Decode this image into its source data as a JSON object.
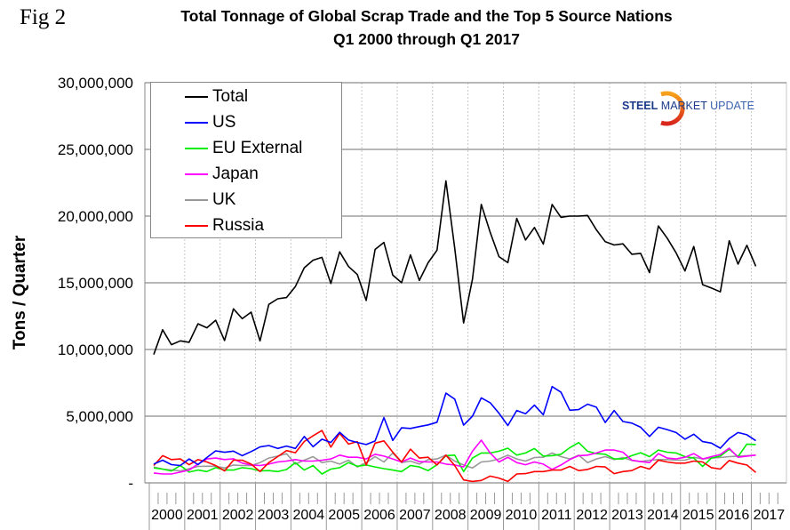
{
  "figure_label": "Fig 2",
  "logo_text": {
    "steel": "STEEL",
    "market": "MARKET",
    "update": "UPDATE"
  },
  "chart_data": {
    "type": "line",
    "title": "Total Tonnage of Global Scrap Trade and the Top 5 Source Nations",
    "subtitle": "Q1 2000 through Q1 2017",
    "xlabel": "",
    "ylabel": "Tons / Quarter",
    "x_frequency": "quarterly",
    "x_range": [
      "Q1 2000",
      "Q1 2017"
    ],
    "x_tick_labels": [
      "2000",
      "2001",
      "2002",
      "2003",
      "2004",
      "2005",
      "2006",
      "2007",
      "2008",
      "2009",
      "2010",
      "2011",
      "2012",
      "2013",
      "2014",
      "2015",
      "2016",
      "2017"
    ],
    "y_tick_labels": [
      "-",
      "5,000,000",
      "10,000,000",
      "15,000,000",
      "20,000,000",
      "25,000,000",
      "30,000,000"
    ],
    "ylim": [
      0,
      30000000
    ],
    "grid": {
      "horizontal": true,
      "vertical": "dotted"
    },
    "legend_placement": "top-left",
    "series": [
      {
        "name": "Total",
        "color": "#000000",
        "values": [
          9620000.0,
          11480000.0,
          10360000.0,
          10650000.0,
          10540000.0,
          11930000.0,
          11630000.0,
          12190000.0,
          10670000.0,
          13050000.0,
          12310000.0,
          12800000.0,
          10650000.0,
          13380000.0,
          13800000.0,
          13890000.0,
          14720000.0,
          16130000.0,
          16690000.0,
          16910000.0,
          14950000.0,
          17320000.0,
          16220000.0,
          15620000.0,
          13670000.0,
          17500000.0,
          18030000.0,
          15570000.0,
          15010000.0,
          17090000.0,
          15170000.0,
          16510000.0,
          17450000.0,
          22640000.0,
          17600000.0,
          11990000.0,
          15280000.0,
          20870000.0,
          18790000.0,
          16960000.0,
          16510000.0,
          19830000.0,
          18210000.0,
          19150000.0,
          17900000.0,
          20870000.0,
          19910000.0,
          20000000.0,
          20000000.0,
          20050000.0,
          18970000.0,
          18080000.0,
          17830000.0,
          17920000.0,
          17140000.0,
          17210000.0,
          15770000.0,
          19260000.0,
          18350000.0,
          17250000.0,
          15890000.0,
          17720000.0,
          14860000.0,
          14610000.0,
          14320000.0,
          18150000.0,
          16400000.0,
          17810000.0,
          16240000.0
        ]
      },
      {
        "name": "US",
        "color": "#0000ff",
        "values": [
          1410000.0,
          1700000.0,
          1370000.0,
          1300000.0,
          1790000.0,
          1370000.0,
          1900000.0,
          2400000.0,
          2290000.0,
          2380000.0,
          2040000.0,
          2350000.0,
          2690000.0,
          2800000.0,
          2580000.0,
          2760000.0,
          2580000.0,
          3480000.0,
          2710000.0,
          3270000.0,
          3030000.0,
          3790000.0,
          3210000.0,
          3030000.0,
          2870000.0,
          3140000.0,
          4890000.0,
          3180000.0,
          4130000.0,
          4080000.0,
          4220000.0,
          4350000.0,
          4550000.0,
          6730000.0,
          6280000.0,
          4330000.0,
          5000000.0,
          6370000.0,
          6010000.0,
          5220000.0,
          4300000.0,
          5430000.0,
          5180000.0,
          5830000.0,
          5110000.0,
          7220000.0,
          6790000.0,
          5450000.0,
          5490000.0,
          5900000.0,
          5670000.0,
          4530000.0,
          5430000.0,
          4600000.0,
          4480000.0,
          4170000.0,
          3480000.0,
          4170000.0,
          3990000.0,
          3770000.0,
          3270000.0,
          3650000.0,
          3090000.0,
          2980000.0,
          2600000.0,
          3320000.0,
          3770000.0,
          3610000.0,
          3160000.0
        ]
      },
      {
        "name": "EU External",
        "color": "#00ee00",
        "values": [
          1120000.0,
          1030000.0,
          890000.0,
          1300000.0,
          810000.0,
          960000.0,
          850000.0,
          1140000.0,
          960000.0,
          960000.0,
          1140000.0,
          1070000.0,
          890000.0,
          920000.0,
          850000.0,
          1000000.0,
          1520000.0,
          960000.0,
          1300000.0,
          670000.0,
          1030000.0,
          1140000.0,
          1520000.0,
          1250000.0,
          1340000.0,
          1190000.0,
          1070000.0,
          960000.0,
          850000.0,
          1300000.0,
          1190000.0,
          920000.0,
          1360000.0,
          2040000.0,
          2080000.0,
          850000.0,
          1860000.0,
          2240000.0,
          2240000.0,
          2370000.0,
          2600000.0,
          2080000.0,
          2240000.0,
          2570000.0,
          2010000.0,
          2040000.0,
          2150000.0,
          2640000.0,
          3020000.0,
          2370000.0,
          2190000.0,
          2150000.0,
          1790000.0,
          1790000.0,
          2040000.0,
          2260000.0,
          1970000.0,
          2460000.0,
          2300000.0,
          2240000.0,
          1970000.0,
          1860000.0,
          1230000.0,
          1860000.0,
          2010000.0,
          2530000.0,
          1970000.0,
          2910000.0,
          2870000.0
        ]
      },
      {
        "name": "Japan",
        "color": "#ff00ff",
        "values": [
          740000.0,
          670000.0,
          670000.0,
          810000.0,
          960000.0,
          1410000.0,
          1790000.0,
          1860000.0,
          1750000.0,
          1810000.0,
          1480000.0,
          1340000.0,
          1300000.0,
          1410000.0,
          1570000.0,
          1630000.0,
          1750000.0,
          1630000.0,
          1630000.0,
          1700000.0,
          1790000.0,
          2080000.0,
          1920000.0,
          1920000.0,
          1790000.0,
          2150000.0,
          2010000.0,
          1790000.0,
          1570000.0,
          1860000.0,
          1590000.0,
          1570000.0,
          1570000.0,
          1410000.0,
          1340000.0,
          1190000.0,
          2370000.0,
          3200000.0,
          2240000.0,
          1570000.0,
          1920000.0,
          1520000.0,
          1360000.0,
          1570000.0,
          1410000.0,
          1010000.0,
          1340000.0,
          1750000.0,
          2040000.0,
          2080000.0,
          2240000.0,
          2460000.0,
          2460000.0,
          2300000.0,
          1700000.0,
          1590000.0,
          1520000.0,
          2190000.0,
          1860000.0,
          1790000.0,
          1920000.0,
          2190000.0,
          1790000.0,
          1970000.0,
          2130000.0,
          2600000.0,
          1920000.0,
          2010000.0,
          2080000.0
        ]
      },
      {
        "name": "UK",
        "color": "#999999",
        "values": [
          1190000.0,
          1030000.0,
          960000.0,
          890000.0,
          1070000.0,
          1230000.0,
          1250000.0,
          1250000.0,
          1120000.0,
          1340000.0,
          1300000.0,
          1300000.0,
          1520000.0,
          1860000.0,
          2010000.0,
          2190000.0,
          1410000.0,
          1700000.0,
          1970000.0,
          1520000.0,
          1630000.0,
          1410000.0,
          1700000.0,
          1190000.0,
          1520000.0,
          1970000.0,
          1570000.0,
          2240000.0,
          1520000.0,
          1630000.0,
          1410000.0,
          1750000.0,
          1790000.0,
          2080000.0,
          1630000.0,
          1340000.0,
          1120000.0,
          1570000.0,
          1630000.0,
          1790000.0,
          2080000.0,
          1790000.0,
          1630000.0,
          1900000.0,
          1920000.0,
          2240000.0,
          1970000.0,
          1790000.0,
          2080000.0,
          1520000.0,
          1790000.0,
          1970000.0,
          1750000.0,
          1900000.0,
          1680000.0,
          1590000.0,
          1700000.0,
          1750000.0,
          1750000.0,
          1700000.0,
          1700000.0,
          1920000.0,
          1790000.0,
          1860000.0,
          1900000.0,
          1970000.0,
          2010000.0,
          2040000.0,
          2080000.0
        ]
      },
      {
        "name": "Russia",
        "color": "#ff0000",
        "values": [
          1300000.0,
          2040000.0,
          1750000.0,
          1790000.0,
          1360000.0,
          1750000.0,
          1570000.0,
          1300000.0,
          890000.0,
          1700000.0,
          1700000.0,
          1410000.0,
          850000.0,
          1520000.0,
          1970000.0,
          2420000.0,
          2260000.0,
          3100000.0,
          3530000.0,
          3930000.0,
          2680000.0,
          3710000.0,
          2910000.0,
          3090000.0,
          1340000.0,
          2980000.0,
          3150000.0,
          2300000.0,
          1570000.0,
          2530000.0,
          1860000.0,
          1920000.0,
          1340000.0,
          2080000.0,
          1300000.0,
          220000.0,
          110000.0,
          180000.0,
          510000.0,
          360000.0,
          110000.0,
          670000.0,
          690000.0,
          850000.0,
          850000.0,
          960000.0,
          960000.0,
          1230000.0,
          920000.0,
          1010000.0,
          1230000.0,
          1190000.0,
          690000.0,
          850000.0,
          920000.0,
          1230000.0,
          1030000.0,
          1700000.0,
          1570000.0,
          1480000.0,
          1480000.0,
          1630000.0,
          1570000.0,
          1140000.0,
          1030000.0,
          1680000.0,
          1480000.0,
          1340000.0,
          780000.0
        ]
      }
    ]
  }
}
